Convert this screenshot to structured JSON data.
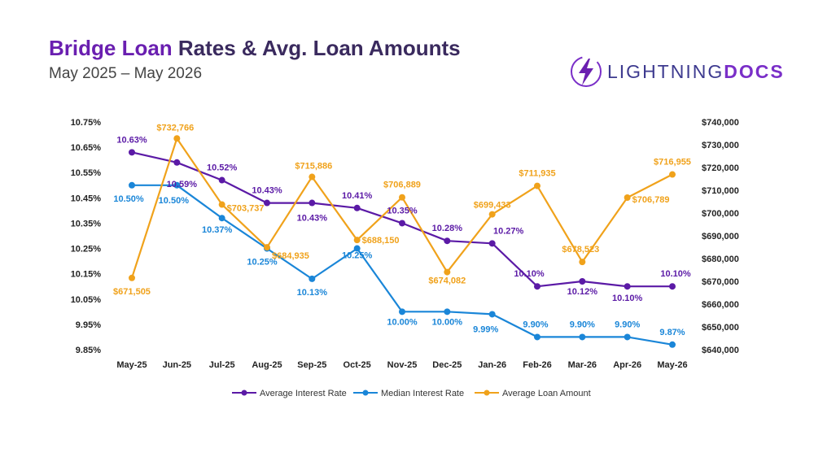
{
  "header": {
    "title_highlight": "Bridge Loan",
    "title_rest": " Rates & Avg. Loan Amounts",
    "subtitle": "May 2025 – May 2026"
  },
  "logo": {
    "text_light": "LIGHTNING",
    "text_bold": "DOCS"
  },
  "colors": {
    "avg": "#5b1aa6",
    "median": "#1a86d8",
    "amount": "#f0a21b",
    "title_accent": "#6a1fb0"
  },
  "chart_data": {
    "type": "line",
    "categories": [
      "May-25",
      "Jun-25",
      "Jul-25",
      "Aug-25",
      "Sep-25",
      "Oct-25",
      "Nov-25",
      "Dec-25",
      "Jan-26",
      "Feb-26",
      "Mar-26",
      "Apr-26",
      "May-26"
    ],
    "y_left": {
      "min": 9.85,
      "max": 10.75,
      "ticks": [
        "10.75%",
        "10.65%",
        "10.55%",
        "10.45%",
        "10.35%",
        "10.25%",
        "10.15%",
        "10.05%",
        "9.95%",
        "9.85%"
      ]
    },
    "y_right": {
      "min": 640000,
      "max": 740000,
      "ticks": [
        "$740,000",
        "$730,000",
        "$720,000",
        "$710,000",
        "$700,000",
        "$690,000",
        "$680,000",
        "$670,000",
        "$660,000",
        "$650,000",
        "$640,000"
      ]
    },
    "grid": false,
    "legend_position": "bottom",
    "series": [
      {
        "name": "Average Interest Rate",
        "axis": "left",
        "values": [
          10.63,
          10.59,
          10.52,
          10.43,
          10.43,
          10.41,
          10.35,
          10.28,
          10.27,
          10.1,
          10.12,
          10.1,
          10.1
        ],
        "labels": [
          "10.63%",
          "10.59%",
          "10.52%",
          "10.43%",
          "10.43%",
          "10.41%",
          "10.35%",
          "10.28%",
          "10.27%",
          "10.10%",
          "10.12%",
          "10.10%",
          "10.10%"
        ]
      },
      {
        "name": "Median Interest Rate",
        "axis": "left",
        "values": [
          10.5,
          10.5,
          10.37,
          10.25,
          10.13,
          10.25,
          10.0,
          10.0,
          9.99,
          9.9,
          9.9,
          9.9,
          9.87
        ],
        "labels": [
          "10.50%",
          "10.50%",
          "10.37%",
          "10.25%",
          "10.13%",
          "10.25%",
          "10.00%",
          "10.00%",
          "9.99%",
          "9.90%",
          "9.90%",
          "9.90%",
          "9.87%"
        ]
      },
      {
        "name": "Average Loan Amount",
        "axis": "right",
        "values": [
          671505,
          732766,
          703737,
          684935,
          715886,
          688150,
          706889,
          674082,
          699433,
          711935,
          678523,
          706789,
          716955
        ],
        "labels": [
          "$671,505",
          "$732,766",
          "$703,737",
          "$684,935",
          "$715,886",
          "$688,150",
          "$706,889",
          "$674,082",
          "$699,433",
          "$711,935",
          "$678,523",
          "$706,789",
          "$716,955"
        ]
      }
    ]
  }
}
